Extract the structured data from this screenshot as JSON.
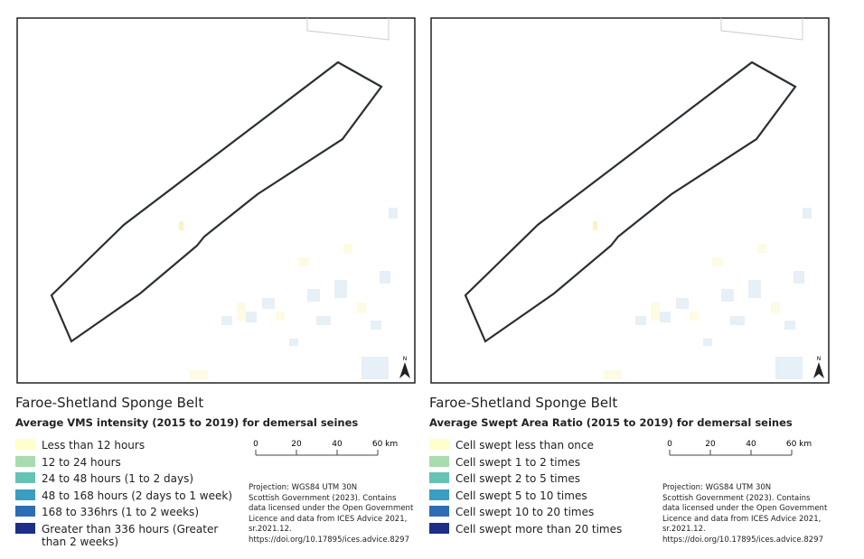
{
  "panels": [
    {
      "title": "Faroe-Shetland Sponge Belt",
      "subtitle": "Average VMS intensity (2015 to 2019) for demersal seines",
      "north": "N",
      "legend": [
        {
          "label": "Less than 12 hours",
          "color": "#ffffcc"
        },
        {
          "label": "12 to 24 hours",
          "color": "#a8dcb0"
        },
        {
          "label": "24 to 48 hours (1 to 2 days)",
          "color": "#66c2b4"
        },
        {
          "label": "48 to 168 hours (2 days to 1 week)",
          "color": "#3a9ec2"
        },
        {
          "label": "168 to 336hrs (1 to 2 weeks)",
          "color": "#2c6db4"
        },
        {
          "label": "Greater than 336 hours (Greater than 2 weeks)",
          "color": "#1b2f8a"
        }
      ],
      "scale": [
        "0",
        "20",
        "40",
        "60 km"
      ],
      "attribution": [
        "Projection: WGS84 UTM 30N",
        "Scottish Government (2023). Contains",
        "data licensed under the Open Government",
        "Licence and data from ICES Advice 2021,",
        "sr.2021.12.",
        "https://doi.org/10.17895/ices.advice.8297"
      ]
    },
    {
      "title": "Faroe-Shetland Sponge Belt",
      "subtitle": "Average Swept Area Ratio (2015 to 2019) for demersal seines",
      "north": "N",
      "legend": [
        {
          "label": "Cell swept less than once",
          "color": "#ffffcc"
        },
        {
          "label": "Cell swept 1 to 2 times",
          "color": "#a8dcb0"
        },
        {
          "label": "Cell swept 2 to 5 times",
          "color": "#66c2b4"
        },
        {
          "label": "Cell swept 5 to 10 times",
          "color": "#3a9ec2"
        },
        {
          "label": "Cell swept 10 to 20 times",
          "color": "#2c6db4"
        },
        {
          "label": "Cell swept more than 20 times",
          "color": "#1b2f8a"
        }
      ],
      "scale": [
        "0",
        "20",
        "40",
        "60 km"
      ],
      "attribution": [
        "Projection: WGS84 UTM 30N",
        "Scottish Government (2023). Contains",
        "data licensed under the Open Government",
        "Licence and data from ICES Advice 2021,",
        "sr.2021.12.",
        "https://doi.org/10.17895/ices.advice.8297"
      ]
    }
  ]
}
